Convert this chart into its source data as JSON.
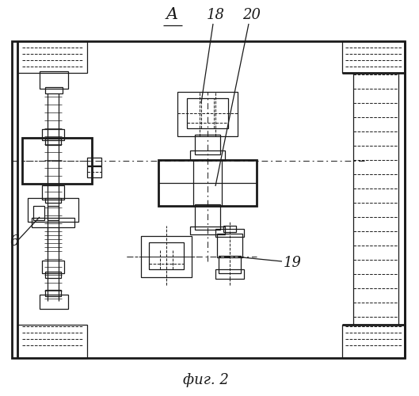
{
  "bg_color": "#ffffff",
  "line_color": "#1a1a1a",
  "lw_thick": 2.0,
  "lw_med": 1.3,
  "lw_thin": 0.9,
  "lw_dash": 0.7,
  "title": "фиг. 2",
  "label_A": "A",
  "label_18": "18",
  "label_20": "20",
  "label_6": "6",
  "label_19": "19",
  "figw": 5.29,
  "figh": 5.0,
  "dpi": 100
}
